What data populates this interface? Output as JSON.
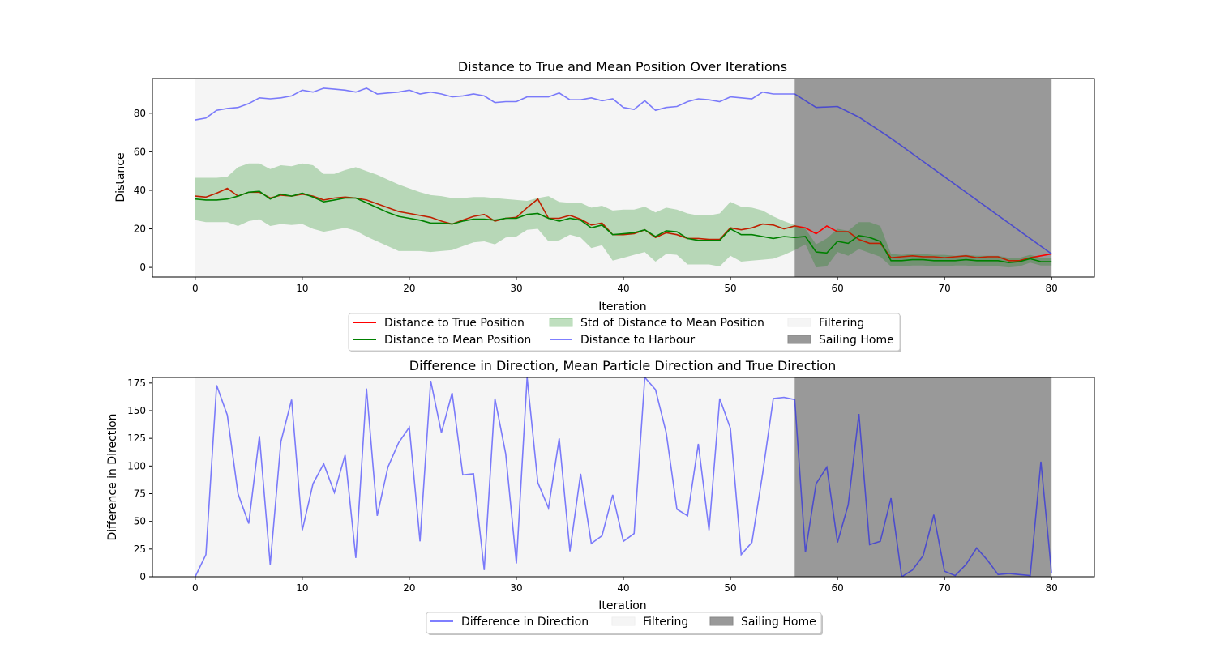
{
  "chart_data": [
    {
      "type": "line",
      "title": "Distance to True and Mean Position Over Iterations",
      "xlabel": "Iteration",
      "ylabel": "Distance",
      "xlim": [
        -4,
        84
      ],
      "ylim": [
        -5,
        98
      ],
      "xticks": [
        0,
        10,
        20,
        30,
        40,
        50,
        60,
        70,
        80
      ],
      "yticks": [
        0,
        20,
        40,
        60,
        80
      ],
      "shaded_regions": [
        {
          "name": "Filtering",
          "x_start": 0,
          "x_end": 56,
          "color": "#f5f5f5"
        },
        {
          "name": "Sailing Home",
          "x_start": 56,
          "x_end": 80,
          "color": "#999999"
        }
      ],
      "series": [
        {
          "name": "Distance to True Position",
          "color": "#ff0000",
          "x": [
            0,
            1,
            2,
            3,
            4,
            5,
            6,
            7,
            8,
            9,
            10,
            11,
            12,
            13,
            14,
            15,
            16,
            17,
            18,
            19,
            20,
            21,
            22,
            23,
            24,
            25,
            26,
            27,
            28,
            29,
            30,
            31,
            32,
            33,
            34,
            35,
            36,
            37,
            38,
            39,
            40,
            41,
            42,
            43,
            44,
            45,
            46,
            47,
            48,
            49,
            50,
            51,
            52,
            53,
            54,
            55,
            56,
            57,
            58,
            59,
            60,
            61,
            62,
            63,
            64,
            65,
            66,
            67,
            68,
            69,
            70,
            71,
            72,
            73,
            74,
            75,
            76,
            77,
            78,
            79,
            80
          ],
          "values": [
            37,
            36.5,
            38.5,
            41,
            37,
            39,
            39,
            36,
            37.5,
            37,
            38,
            37,
            35,
            36,
            36.5,
            36,
            35,
            33,
            31,
            29,
            28,
            27,
            26,
            24,
            22.5,
            24.5,
            26.5,
            27.5,
            24,
            25.5,
            26,
            31,
            35.5,
            25.5,
            25.5,
            27,
            25,
            22,
            23,
            17,
            17,
            17.5,
            19.5,
            15.5,
            18,
            17,
            15,
            15,
            14.5,
            14.5,
            20.5,
            19.5,
            20.5,
            22.5,
            22,
            20,
            21.5,
            20.5,
            17.5,
            21.5,
            18.5,
            18.5,
            14.5,
            12.5,
            12.5,
            5,
            5.5,
            6,
            5.5,
            5.5,
            5,
            5.5,
            6,
            5,
            5.5,
            5.5,
            3.5,
            3.5,
            5,
            6,
            7
          ]
        },
        {
          "name": "Distance to Mean Position",
          "color": "#008000",
          "x": [
            0,
            1,
            2,
            3,
            4,
            5,
            6,
            7,
            8,
            9,
            10,
            11,
            12,
            13,
            14,
            15,
            16,
            17,
            18,
            19,
            20,
            21,
            22,
            23,
            24,
            25,
            26,
            27,
            28,
            29,
            30,
            31,
            32,
            33,
            34,
            35,
            36,
            37,
            38,
            39,
            40,
            41,
            42,
            43,
            44,
            45,
            46,
            47,
            48,
            49,
            50,
            51,
            52,
            53,
            54,
            55,
            56,
            57,
            58,
            59,
            60,
            61,
            62,
            63,
            64,
            65,
            66,
            67,
            68,
            69,
            70,
            71,
            72,
            73,
            74,
            75,
            76,
            77,
            78,
            79,
            80
          ],
          "values": [
            35.5,
            35,
            35,
            35.5,
            37,
            39,
            39.5,
            35.5,
            38,
            37,
            38.5,
            36.5,
            34,
            35,
            36,
            36,
            33.5,
            31,
            28.5,
            26.5,
            25.5,
            24.5,
            23,
            23,
            22.5,
            24,
            25,
            25,
            24.5,
            25.5,
            25.5,
            27.5,
            28,
            25.5,
            24,
            25.5,
            24.5,
            20.5,
            22,
            17,
            17.5,
            18,
            19.5,
            16,
            19,
            18.5,
            15,
            14,
            14,
            14,
            20,
            17,
            17,
            16,
            15,
            16,
            15.5,
            16,
            8,
            7.5,
            13.5,
            12.5,
            16.5,
            15.5,
            13.5,
            3.5,
            3.5,
            4,
            4,
            3.5,
            3.5,
            3.5,
            4,
            3.5,
            3.5,
            3.5,
            2.5,
            3,
            4.5,
            3,
            3
          ]
        },
        {
          "name": "Std of Distance to Mean Position",
          "color": "#008000",
          "fill_opacity": 0.25,
          "x": [
            0,
            1,
            2,
            3,
            4,
            5,
            6,
            7,
            8,
            9,
            10,
            11,
            12,
            13,
            14,
            15,
            16,
            17,
            18,
            19,
            20,
            21,
            22,
            23,
            24,
            25,
            26,
            27,
            28,
            29,
            30,
            31,
            32,
            33,
            34,
            35,
            36,
            37,
            38,
            39,
            40,
            41,
            42,
            43,
            44,
            45,
            46,
            47,
            48,
            49,
            50,
            51,
            52,
            53,
            54,
            55,
            56,
            57,
            58,
            59,
            60,
            61,
            62,
            63,
            64,
            65,
            66,
            67,
            68,
            69,
            70,
            71,
            72,
            73,
            74,
            75,
            76,
            77,
            78,
            79,
            80
          ],
          "upper": [
            46.5,
            46.5,
            46.5,
            47,
            52,
            54,
            54,
            51,
            53,
            52.5,
            54,
            53,
            48.5,
            48.5,
            50.5,
            52,
            50,
            48,
            45.5,
            43,
            41,
            39,
            37.5,
            37,
            36,
            36,
            36.5,
            36.5,
            36,
            35.5,
            35,
            34.5,
            36,
            37,
            34,
            33.5,
            33.5,
            31,
            32,
            29.5,
            30,
            30,
            31.5,
            28.5,
            31,
            30,
            28,
            27,
            27,
            28,
            34,
            31.5,
            31,
            29.5,
            26.5,
            24,
            22,
            20,
            12,
            15,
            20,
            19,
            23.5,
            23.5,
            21.5,
            7,
            6.5,
            7,
            7,
            6.5,
            6.5,
            6,
            6.5,
            6,
            6,
            6,
            5,
            5,
            6.5,
            5,
            5
          ],
          "lower": [
            24.5,
            23.5,
            23.5,
            23.5,
            21.5,
            24,
            25,
            21.5,
            22.5,
            22,
            22.5,
            20,
            18.5,
            19.5,
            20.5,
            19,
            16,
            13.5,
            11,
            8.5,
            8.5,
            8.5,
            8,
            8.5,
            9,
            11,
            13,
            13.5,
            12,
            15.5,
            16,
            19.5,
            20,
            13.5,
            14,
            17,
            15.5,
            10,
            11.5,
            3.5,
            5,
            6.5,
            8,
            3,
            7,
            6.5,
            1.5,
            1.5,
            1.5,
            0.5,
            6,
            3,
            3.5,
            4,
            4.5,
            6.5,
            9,
            12,
            0,
            0.5,
            8,
            6,
            9.5,
            7.5,
            5.5,
            0.5,
            0.5,
            1,
            1,
            0.5,
            0.5,
            1,
            1,
            0.5,
            0.5,
            0.5,
            0,
            0.5,
            2.5,
            1,
            1
          ]
        },
        {
          "name": "Distance to Harbour",
          "color": "#0000ff",
          "opacity": 0.5,
          "x": [
            0,
            1,
            2,
            3,
            4,
            5,
            6,
            7,
            8,
            9,
            10,
            11,
            12,
            13,
            14,
            15,
            16,
            17,
            18,
            19,
            20,
            21,
            22,
            23,
            24,
            25,
            26,
            27,
            28,
            29,
            30,
            31,
            32,
            33,
            34,
            35,
            36,
            37,
            38,
            39,
            40,
            41,
            42,
            43,
            44,
            45,
            46,
            47,
            48,
            49,
            50,
            51,
            52,
            53,
            54,
            55,
            56,
            58,
            60,
            62,
            65,
            80
          ],
          "values": [
            76.5,
            77.5,
            81.5,
            82.5,
            83,
            85,
            88,
            87.5,
            88,
            89,
            92,
            91,
            93,
            92.5,
            92,
            91,
            93,
            90,
            90.5,
            91,
            92,
            90,
            91,
            90,
            88.5,
            89,
            90,
            89,
            85.5,
            86,
            86,
            88.5,
            88.5,
            88.5,
            90.5,
            87,
            87,
            88,
            86.5,
            87.5,
            83,
            82,
            86.5,
            81.5,
            83,
            83.5,
            86,
            87.5,
            87,
            86,
            88.5,
            88,
            87.5,
            91,
            90,
            90,
            90,
            83,
            83.5,
            78,
            67,
            7
          ]
        }
      ],
      "legend": {
        "placement": "below",
        "entries": [
          "Distance to True Position",
          "Distance to Mean Position",
          "Std of Distance to Mean Position",
          "Distance to Harbour",
          "Filtering",
          "Sailing Home"
        ]
      }
    },
    {
      "type": "line",
      "title": "Difference in Direction, Mean Particle Direction and True Direction",
      "xlabel": "Iteration",
      "ylabel": "Difference in Direction",
      "xlim": [
        -4,
        84
      ],
      "ylim": [
        0,
        180
      ],
      "xticks": [
        0,
        10,
        20,
        30,
        40,
        50,
        60,
        70,
        80
      ],
      "yticks": [
        0,
        25,
        50,
        75,
        100,
        125,
        150,
        175
      ],
      "shaded_regions": [
        {
          "name": "Filtering",
          "x_start": 0,
          "x_end": 56,
          "color": "#f5f5f5"
        },
        {
          "name": "Sailing Home",
          "x_start": 56,
          "x_end": 80,
          "color": "#999999"
        }
      ],
      "series": [
        {
          "name": "Difference in Direction",
          "color": "#0000ff",
          "opacity": 0.5,
          "x": [
            0,
            1,
            2,
            3,
            4,
            5,
            6,
            7,
            8,
            9,
            10,
            11,
            12,
            13,
            14,
            15,
            16,
            17,
            18,
            19,
            20,
            21,
            22,
            23,
            24,
            25,
            26,
            27,
            28,
            29,
            30,
            31,
            32,
            33,
            34,
            35,
            36,
            37,
            38,
            39,
            40,
            41,
            42,
            43,
            44,
            45,
            46,
            47,
            48,
            49,
            50,
            51,
            52,
            53,
            54,
            55,
            56,
            57,
            58,
            59,
            60,
            61,
            62,
            63,
            64,
            65,
            66,
            67,
            68,
            69,
            70,
            71,
            72,
            73,
            74,
            75,
            76,
            77,
            78,
            79,
            80
          ],
          "values": [
            0,
            20,
            173,
            146,
            75,
            48,
            127,
            11,
            122,
            160,
            42,
            84,
            102,
            76,
            110,
            17,
            170,
            55,
            99,
            121,
            135,
            32,
            177,
            130,
            166,
            92,
            93,
            6,
            161,
            111,
            12,
            180,
            85,
            62,
            125,
            23,
            93,
            30,
            37,
            74,
            32,
            39,
            180,
            169,
            130,
            61,
            55,
            120,
            42,
            161,
            134,
            20,
            31,
            93,
            161,
            162,
            160,
            22,
            84,
            99,
            31,
            65,
            147,
            29,
            32,
            71,
            0,
            6,
            19,
            56,
            5,
            1,
            11,
            26,
            15,
            2,
            3,
            2,
            1,
            104,
            3
          ]
        }
      ],
      "legend": {
        "placement": "below",
        "entries": [
          "Difference in Direction",
          "Filtering",
          "Sailing Home"
        ]
      }
    }
  ]
}
